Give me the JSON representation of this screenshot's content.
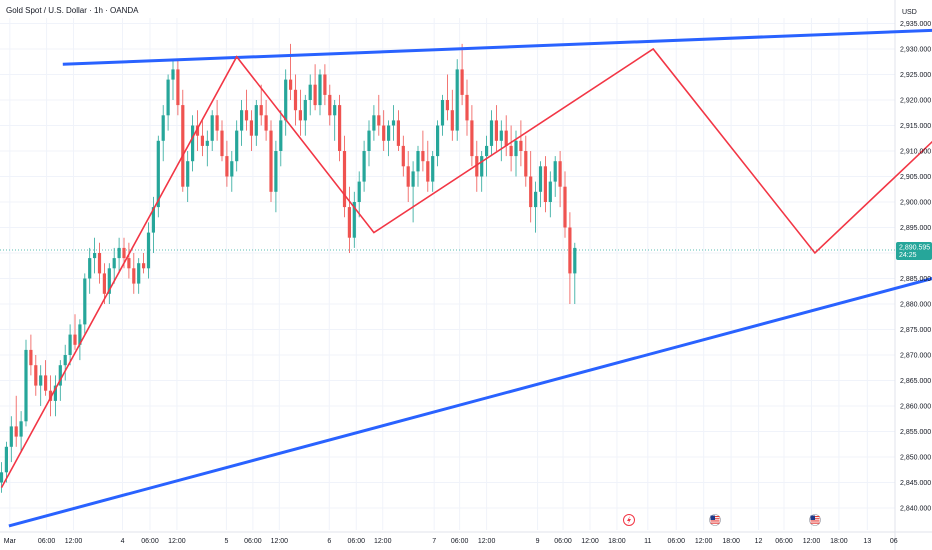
{
  "header": {
    "symbol_title": "Gold Spot / U.S. Dollar · 1h · OANDA",
    "currency": "USD"
  },
  "chart_data": {
    "type": "candlestick",
    "title": "Gold Spot / U.S. Dollar · 1h · OANDA",
    "currency": "USD",
    "ylim": [
      2838,
      2937
    ],
    "yticks": [
      2840,
      2845,
      2850,
      2855,
      2860,
      2865,
      2870,
      2875,
      2880,
      2885,
      2890,
      2895,
      2900,
      2905,
      2910,
      2915,
      2920,
      2925,
      2930,
      2935
    ],
    "ytick_labels": [
      "2,840.000",
      "2,845.000",
      "2,850.000",
      "2,855.000",
      "2,860.000",
      "2,865.000",
      "2,870.000",
      "2,875.000",
      "2,880.000",
      "2,885.000",
      "2,890.000",
      "2,895.000",
      "2,900.000",
      "2,905.000",
      "2,910.000",
      "2,915.000",
      "2,920.000",
      "2,925.000",
      "2,930.000",
      "2,935.000"
    ],
    "xlim": [
      0,
      129
    ],
    "xticks": [
      {
        "i": 1.7,
        "label": "Mar"
      },
      {
        "i": 9.2,
        "label": "06:00"
      },
      {
        "i": 14.7,
        "label": "12:00"
      },
      {
        "i": 24.7,
        "label": "4"
      },
      {
        "i": 30.3,
        "label": "06:00"
      },
      {
        "i": 35.8,
        "label": "12:00"
      },
      {
        "i": 45.9,
        "label": "5"
      },
      {
        "i": 51.3,
        "label": "06:00"
      },
      {
        "i": 56.7,
        "label": "12:00"
      },
      {
        "i": 66.9,
        "label": "6"
      },
      {
        "i": 72.4,
        "label": "06:00"
      },
      {
        "i": 77.8,
        "label": "12:00"
      },
      {
        "i": 88.3,
        "label": "7"
      },
      {
        "i": 93.5,
        "label": "06:00"
      },
      {
        "i": 99.0,
        "label": "12:00"
      },
      {
        "i": 109.4,
        "label": "9"
      },
      {
        "i": 114.6,
        "label": "06:00"
      },
      {
        "i": 120.1,
        "label": "12:00"
      },
      {
        "i": 125.6,
        "label": "18:00"
      },
      {
        "i": 131.9,
        "label": "11"
      },
      {
        "i": 137.7,
        "label": "06:00"
      },
      {
        "i": 143.3,
        "label": "12:00"
      },
      {
        "i": 148.9,
        "label": "18:00"
      },
      {
        "i": 154.5,
        "label": "12"
      },
      {
        "i": 159.7,
        "label": "06:00"
      },
      {
        "i": 165.3,
        "label": "12:00"
      },
      {
        "i": 170.9,
        "label": "18:00"
      },
      {
        "i": 176.7,
        "label": "13"
      },
      {
        "i": 182.1,
        "label": "06"
      }
    ],
    "ohlc": [
      [
        2845,
        2849,
        2843,
        2847
      ],
      [
        2847,
        2853,
        2845,
        2852
      ],
      [
        2852,
        2858,
        2849,
        2856
      ],
      [
        2856,
        2862,
        2852,
        2854
      ],
      [
        2854,
        2859,
        2851,
        2857
      ],
      [
        2857,
        2873,
        2856,
        2871
      ],
      [
        2871,
        2874,
        2866,
        2868
      ],
      [
        2868,
        2870,
        2862,
        2864
      ],
      [
        2864,
        2868,
        2860,
        2866
      ],
      [
        2866,
        2869,
        2862,
        2863
      ],
      [
        2863,
        2866,
        2858,
        2861
      ],
      [
        2861,
        2866,
        2858,
        2864
      ],
      [
        2864,
        2869,
        2861,
        2868
      ],
      [
        2868,
        2872,
        2865,
        2870
      ],
      [
        2870,
        2876,
        2868,
        2874
      ],
      [
        2874,
        2878,
        2871,
        2872
      ],
      [
        2872,
        2877,
        2869,
        2876
      ],
      [
        2876,
        2886,
        2874,
        2885
      ],
      [
        2885,
        2891,
        2882,
        2889
      ],
      [
        2889,
        2893,
        2886,
        2890
      ],
      [
        2890,
        2892,
        2884,
        2886
      ],
      [
        2886,
        2888,
        2880,
        2882
      ],
      [
        2882,
        2888,
        2880,
        2887
      ],
      [
        2887,
        2891,
        2884,
        2889
      ],
      [
        2889,
        2893,
        2886,
        2891
      ],
      [
        2891,
        2893,
        2887,
        2889
      ],
      [
        2889,
        2892,
        2885,
        2887
      ],
      [
        2887,
        2890,
        2882,
        2884
      ],
      [
        2884,
        2889,
        2882,
        2888
      ],
      [
        2888,
        2890,
        2886,
        2887
      ],
      [
        2887,
        2896,
        2885,
        2894
      ],
      [
        2894,
        2901,
        2890,
        2899
      ],
      [
        2899,
        2913,
        2897,
        2912
      ],
      [
        2912,
        2919,
        2908,
        2917
      ],
      [
        2917,
        2925,
        2914,
        2924
      ],
      [
        2924,
        2928,
        2920,
        2926
      ],
      [
        2926,
        2928,
        2917,
        2919
      ],
      [
        2919,
        2922,
        2902,
        2903
      ],
      [
        2903,
        2910,
        2900,
        2908
      ],
      [
        2908,
        2917,
        2906,
        2915
      ],
      [
        2915,
        2918,
        2910,
        2913
      ],
      [
        2913,
        2916,
        2909,
        2911
      ],
      [
        2911,
        2914,
        2907,
        2912
      ],
      [
        2912,
        2918,
        2910,
        2917
      ],
      [
        2917,
        2920,
        2912,
        2914
      ],
      [
        2914,
        2916,
        2908,
        2909
      ],
      [
        2909,
        2912,
        2903,
        2905
      ],
      [
        2905,
        2910,
        2902,
        2908
      ],
      [
        2908,
        2916,
        2906,
        2914
      ],
      [
        2914,
        2920,
        2911,
        2918
      ],
      [
        2918,
        2922,
        2914,
        2916
      ],
      [
        2916,
        2918,
        2910,
        2913
      ],
      [
        2913,
        2920,
        2911,
        2919
      ],
      [
        2919,
        2923,
        2915,
        2917
      ],
      [
        2917,
        2920,
        2912,
        2914
      ],
      [
        2914,
        2916,
        2900,
        2902
      ],
      [
        2902,
        2912,
        2898,
        2910
      ],
      [
        2910,
        2918,
        2907,
        2916
      ],
      [
        2916,
        2926,
        2913,
        2924
      ],
      [
        2924,
        2931,
        2920,
        2922
      ],
      [
        2922,
        2925,
        2915,
        2918
      ],
      [
        2918,
        2922,
        2913,
        2916
      ],
      [
        2916,
        2921,
        2913,
        2920
      ],
      [
        2920,
        2925,
        2917,
        2923
      ],
      [
        2923,
        2927,
        2918,
        2919
      ],
      [
        2919,
        2926,
        2917,
        2925
      ],
      [
        2925,
        2927,
        2919,
        2921
      ],
      [
        2921,
        2923,
        2915,
        2917
      ],
      [
        2917,
        2920,
        2912,
        2919
      ],
      [
        2919,
        2921,
        2908,
        2910
      ],
      [
        2910,
        2913,
        2897,
        2899
      ],
      [
        2899,
        2903,
        2890,
        2893
      ],
      [
        2893,
        2902,
        2891,
        2900
      ],
      [
        2900,
        2906,
        2897,
        2904
      ],
      [
        2904,
        2912,
        2902,
        2910
      ],
      [
        2910,
        2916,
        2907,
        2914
      ],
      [
        2914,
        2919,
        2912,
        2917
      ],
      [
        2917,
        2921,
        2913,
        2915
      ],
      [
        2915,
        2918,
        2910,
        2912
      ],
      [
        2912,
        2916,
        2909,
        2915
      ],
      [
        2915,
        2919,
        2912,
        2916
      ],
      [
        2916,
        2918,
        2910,
        2911
      ],
      [
        2911,
        2913,
        2905,
        2907
      ],
      [
        2907,
        2910,
        2900,
        2903
      ],
      [
        2903,
        2908,
        2896,
        2906
      ],
      [
        2906,
        2911,
        2903,
        2910
      ],
      [
        2910,
        2914,
        2906,
        2908
      ],
      [
        2908,
        2912,
        2902,
        2904
      ],
      [
        2904,
        2910,
        2902,
        2909
      ],
      [
        2909,
        2916,
        2907,
        2915
      ],
      [
        2915,
        2921,
        2913,
        2920
      ],
      [
        2920,
        2925,
        2916,
        2918
      ],
      [
        2918,
        2922,
        2912,
        2914
      ],
      [
        2914,
        2928,
        2912,
        2926
      ],
      [
        2926,
        2931,
        2919,
        2921
      ],
      [
        2921,
        2924,
        2913,
        2916
      ],
      [
        2916,
        2919,
        2907,
        2909
      ],
      [
        2909,
        2912,
        2902,
        2905
      ],
      [
        2905,
        2910,
        2902,
        2909
      ],
      [
        2909,
        2913,
        2905,
        2911
      ],
      [
        2911,
        2918,
        2909,
        2916
      ],
      [
        2916,
        2919,
        2910,
        2912
      ],
      [
        2912,
        2916,
        2908,
        2914
      ],
      [
        2914,
        2917,
        2909,
        2911
      ],
      [
        2911,
        2915,
        2906,
        2909
      ],
      [
        2909,
        2914,
        2905,
        2912
      ],
      [
        2912,
        2916,
        2907,
        2910
      ],
      [
        2910,
        2913,
        2903,
        2905
      ],
      [
        2905,
        2910,
        2896,
        2899
      ],
      [
        2899,
        2904,
        2894,
        2902
      ],
      [
        2902,
        2908,
        2899,
        2907
      ],
      [
        2907,
        2909,
        2898,
        2900
      ],
      [
        2900,
        2906,
        2897,
        2904
      ],
      [
        2904,
        2909,
        2901,
        2908
      ],
      [
        2908,
        2910,
        2899,
        2903
      ],
      [
        2903,
        2906,
        2893,
        2895
      ],
      [
        2895,
        2898,
        2880,
        2886
      ],
      [
        2886,
        2892,
        2880,
        2891
      ]
    ],
    "last_price": 2890.595,
    "last_price_label": "2,890.595",
    "countdown": "24:25",
    "annotations": {
      "channel_upper": [
        [
          12.5,
          2927.0
        ],
        [
          247.0,
          2935.8
        ]
      ],
      "channel_lower": [
        [
          1.5,
          2836.5
        ],
        [
          235.0,
          2896.6
        ]
      ],
      "zigzag": [
        [
          0,
          2844.0
        ],
        [
          48.0,
          2928.5
        ],
        [
          76.0,
          2894.0
        ],
        [
          133.0,
          2930.0
        ],
        [
          166.0,
          2890.0
        ],
        [
          211.0,
          2931.0
        ]
      ]
    }
  },
  "colors": {
    "up": "#26a69a",
    "down": "#ef5350",
    "channel": "#2962ff",
    "zigzag": "#f23645",
    "price_tag": "#26a69a",
    "grid": "#f0f3fa",
    "axis_text": "#131722"
  },
  "event_icons": [
    {
      "name": "flash-icon",
      "at": 2890.6
    },
    {
      "name": "us-flag-icon",
      "at": 2890.6
    },
    {
      "name": "us-flag-icon",
      "at": 2890.6
    }
  ]
}
